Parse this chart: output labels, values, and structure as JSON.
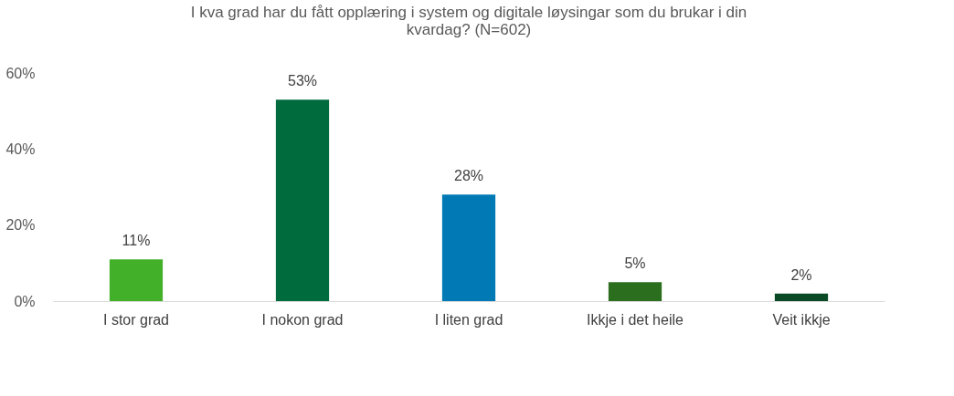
{
  "chart_data": {
    "type": "bar",
    "title": "I kva grad har du fått opplæring i system og digitale løysingar som du brukar i din kvardag? (N=602)",
    "categories": [
      "I stor grad",
      "I nokon grad",
      "I liten grad",
      "Ikkje i det heile",
      "Veit ikkje"
    ],
    "values": [
      11,
      53,
      28,
      5,
      2
    ],
    "colors": [
      "#43b02a",
      "#006b3c",
      "#0079b4",
      "#2b6e1e",
      "#0b4a26"
    ],
    "value_labels": [
      "11%",
      "53%",
      "28%",
      "5%",
      "2%"
    ],
    "ylim": [
      0,
      60
    ],
    "yticks": [
      {
        "value": 0,
        "label": "0%"
      },
      {
        "value": 20,
        "label": "20%"
      },
      {
        "value": 40,
        "label": "40%"
      },
      {
        "value": 60,
        "label": "60%"
      }
    ],
    "grid": false
  }
}
